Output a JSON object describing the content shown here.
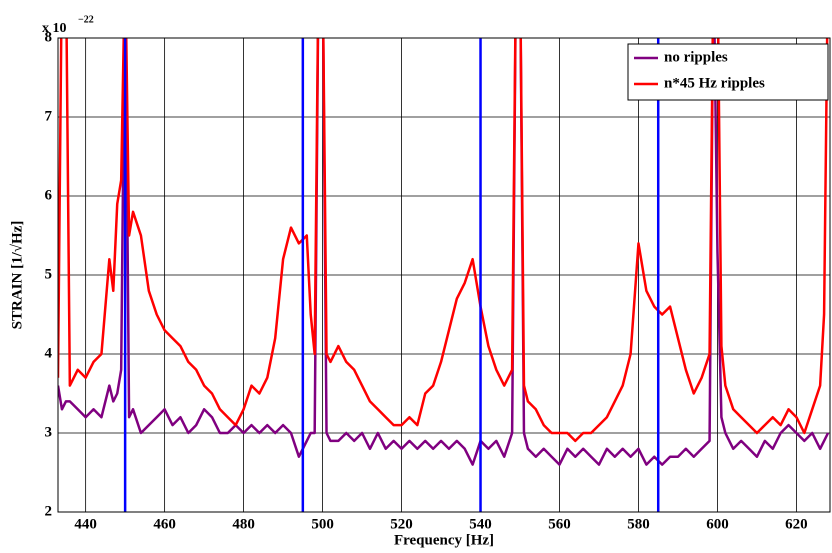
{
  "chart_data": {
    "type": "line",
    "xlabel": "Frequency [Hz]",
    "ylabel": "STRAIN [1/√Hz]",
    "y_multiplier": {
      "base": "x 10",
      "exponent": "−22"
    },
    "x": [
      433,
      434,
      435,
      436,
      438,
      440,
      442,
      444,
      446,
      447,
      448,
      449,
      450,
      451,
      452,
      454,
      456,
      458,
      460,
      462,
      464,
      466,
      468,
      470,
      472,
      474,
      476,
      478,
      480,
      482,
      484,
      486,
      488,
      490,
      492,
      494,
      496,
      497,
      498,
      499,
      500,
      501,
      502,
      504,
      506,
      508,
      510,
      512,
      514,
      516,
      518,
      520,
      522,
      524,
      526,
      528,
      530,
      532,
      534,
      536,
      538,
      540,
      542,
      544,
      546,
      548,
      549,
      550,
      551,
      552,
      554,
      556,
      558,
      560,
      562,
      564,
      566,
      568,
      570,
      572,
      574,
      576,
      578,
      580,
      582,
      584,
      586,
      588,
      590,
      592,
      594,
      596,
      598,
      599,
      600,
      601,
      602,
      604,
      606,
      608,
      610,
      612,
      614,
      616,
      618,
      620,
      622,
      624,
      626,
      627,
      628
    ],
    "series": [
      {
        "name": "no ripples",
        "color": "#800080",
        "values": [
          3.6,
          3.3,
          3.4,
          3.4,
          3.3,
          3.2,
          3.3,
          3.2,
          3.6,
          3.4,
          3.5,
          3.8,
          9,
          3.2,
          3.3,
          3.0,
          3.1,
          3.2,
          3.3,
          3.1,
          3.2,
          3.0,
          3.1,
          3.3,
          3.2,
          3.0,
          3.0,
          3.1,
          3.0,
          3.1,
          3.0,
          3.1,
          3.0,
          3.1,
          3.0,
          2.7,
          2.9,
          3.0,
          3.0,
          9,
          9,
          3.0,
          2.9,
          2.9,
          3.0,
          2.9,
          3.0,
          2.8,
          3.0,
          2.8,
          2.9,
          2.8,
          2.9,
          2.8,
          2.9,
          2.8,
          2.9,
          2.8,
          2.9,
          2.8,
          2.6,
          2.9,
          2.8,
          2.9,
          2.7,
          3.0,
          9,
          9,
          3.0,
          2.8,
          2.7,
          2.8,
          2.7,
          2.6,
          2.8,
          2.7,
          2.8,
          2.7,
          2.6,
          2.8,
          2.7,
          2.8,
          2.7,
          2.8,
          2.6,
          2.7,
          2.6,
          2.7,
          2.7,
          2.8,
          2.7,
          2.8,
          2.9,
          9,
          5.3,
          3.2,
          3.0,
          2.8,
          2.9,
          2.8,
          2.7,
          2.9,
          2.8,
          3.0,
          3.1,
          3.0,
          2.9,
          3.0,
          2.8,
          2.9,
          3.0
        ]
      },
      {
        "name": "n*45 Hz ripples",
        "color": "#ff0000",
        "values": [
          3.7,
          9,
          9,
          3.6,
          3.8,
          3.7,
          3.9,
          4.0,
          5.2,
          4.8,
          5.9,
          6.2,
          9,
          5.5,
          5.8,
          5.5,
          4.8,
          4.5,
          4.3,
          4.2,
          4.1,
          3.9,
          3.8,
          3.6,
          3.5,
          3.3,
          3.2,
          3.1,
          3.3,
          3.6,
          3.5,
          3.7,
          4.2,
          5.2,
          5.6,
          5.4,
          5.5,
          4.5,
          4.0,
          9,
          9,
          4.0,
          3.9,
          4.1,
          3.9,
          3.8,
          3.6,
          3.4,
          3.3,
          3.2,
          3.1,
          3.1,
          3.2,
          3.1,
          3.5,
          3.6,
          3.9,
          4.3,
          4.7,
          4.9,
          5.2,
          4.6,
          4.1,
          3.8,
          3.6,
          3.8,
          9,
          9,
          3.6,
          3.4,
          3.3,
          3.1,
          3.0,
          3.0,
          3.0,
          2.9,
          3.0,
          3.0,
          3.1,
          3.2,
          3.4,
          3.6,
          4.0,
          5.4,
          4.8,
          4.6,
          4.5,
          4.6,
          4.2,
          3.8,
          3.5,
          3.7,
          4.0,
          9,
          9,
          4.1,
          3.6,
          3.3,
          3.2,
          3.1,
          3.0,
          3.1,
          3.2,
          3.1,
          3.3,
          3.2,
          3.0,
          3.3,
          3.6,
          4.5,
          9
        ]
      }
    ],
    "reference_lines": {
      "x": [
        450,
        495,
        540,
        585
      ],
      "color": "#0000ff"
    },
    "xlim": [
      433,
      628.5
    ],
    "ylim": [
      2,
      8
    ],
    "xticks": [
      440,
      460,
      480,
      500,
      520,
      540,
      560,
      580,
      600,
      620
    ],
    "yticks": [
      2,
      3,
      4,
      5,
      6,
      7,
      8
    ],
    "grid": true,
    "legend": "top-right"
  }
}
